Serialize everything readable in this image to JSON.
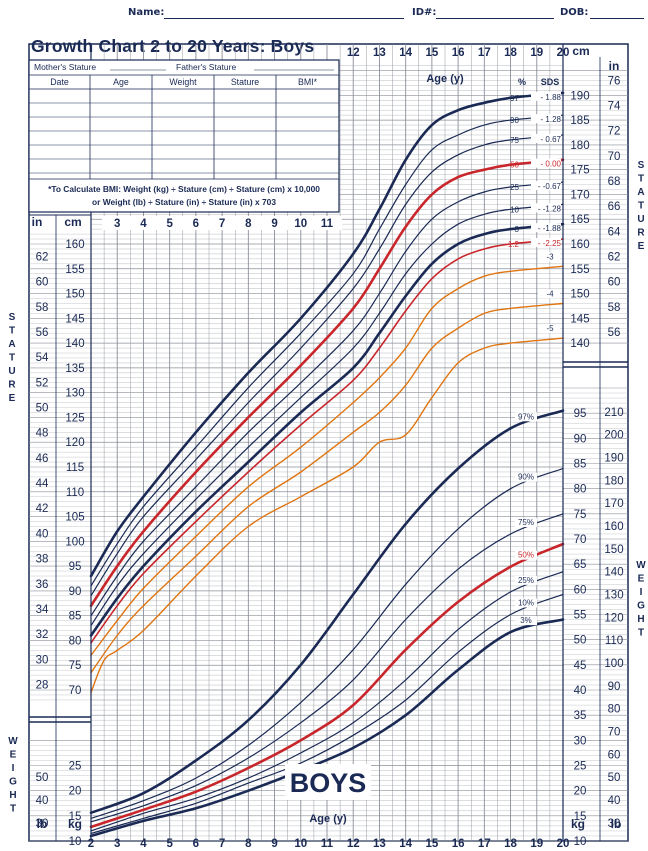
{
  "form": {
    "name_label": "Name:",
    "id_label": "ID#:",
    "dob_label": "DOB:"
  },
  "title": "Growth Chart 2 to 20 Years: Boys",
  "record_table": {
    "mother_label": "Mother's Stature",
    "father_label": "Father's Stature",
    "columns": [
      "Date",
      "Age",
      "Weight",
      "Stature",
      "BMI*"
    ]
  },
  "bmi_note": {
    "line1": "*To Calculate BMI: Weight (kg) ÷ Stature (cm) ÷ Stature (cm) x 10,000",
    "line2": "or Weight (lb) ÷ Stature (in) ÷ Stature (in) x 703"
  },
  "boys_label": "BOYS",
  "labels": {
    "age_top": "Age (y)",
    "age_bottom": "Age (y)",
    "stature": "STATURE",
    "weight": "WEIGHT",
    "in": "in",
    "cm": "cm",
    "kg": "kg",
    "lb": "lb",
    "pct": "%",
    "sds": "SDS"
  },
  "colors": {
    "navy": "#1a2a55",
    "red": "#c8262b",
    "orange": "#e07410",
    "grid": "#8a8f99"
  },
  "chart_data": [
    {
      "type": "line",
      "name": "stature",
      "title": "Growth Chart 2 to 20 Years: Boys",
      "x_label": "Age (y)",
      "y_label": "STATURE",
      "xlim": [
        2,
        20
      ],
      "ylim_cm": [
        60,
        195
      ],
      "x_ticks_bottom": [
        2,
        3,
        4,
        5,
        6,
        7,
        8,
        9,
        10,
        11,
        12,
        13,
        14,
        15,
        16,
        17,
        18,
        19,
        20
      ],
      "x_ticks_top": [
        12,
        13,
        14,
        15,
        16,
        17,
        18,
        19,
        20
      ],
      "x_ticks_mid": [
        3,
        4,
        5,
        6,
        7,
        8,
        9,
        10,
        11
      ],
      "cm_ticks_left": [
        70,
        75,
        80,
        85,
        90,
        95,
        100,
        105,
        110,
        115,
        120,
        125,
        130,
        135,
        140,
        145,
        150,
        155,
        160
      ],
      "in_ticks_left": [
        28,
        30,
        32,
        34,
        36,
        38,
        40,
        42,
        44,
        46,
        48,
        50,
        52,
        54,
        56,
        58,
        60,
        62
      ],
      "cm_ticks_right": [
        140,
        145,
        150,
        155,
        160,
        165,
        170,
        175,
        180,
        185,
        190
      ],
      "in_ticks_right": [
        56,
        58,
        60,
        62,
        64,
        66,
        68,
        70,
        72,
        74,
        76
      ],
      "series": [
        {
          "name": "97",
          "sds": "1.88",
          "x": [
            2,
            3,
            4,
            6,
            8,
            10,
            12,
            13,
            14,
            15,
            16,
            17,
            18,
            20
          ],
          "y": [
            93,
            102,
            109,
            122,
            134,
            145,
            158,
            167,
            177,
            184,
            187,
            188.5,
            189.5,
            190.5
          ]
        },
        {
          "name": "90",
          "sds": "1.28",
          "x": [
            2,
            3,
            4,
            6,
            8,
            10,
            12,
            13,
            14,
            15,
            16,
            17,
            18,
            20
          ],
          "y": [
            91,
            99.5,
            107,
            119,
            131,
            142,
            154,
            163,
            172,
            179,
            182,
            184,
            185,
            186
          ]
        },
        {
          "name": "75",
          "sds": "0.67",
          "x": [
            2,
            3,
            4,
            6,
            8,
            10,
            12,
            13,
            14,
            15,
            16,
            17,
            18,
            20
          ],
          "y": [
            89,
            97.5,
            105,
            116.5,
            128,
            139,
            151,
            159,
            168,
            174.5,
            178,
            180,
            181,
            182
          ]
        },
        {
          "name": "50",
          "sds": "0.00",
          "x": [
            2,
            3,
            4,
            6,
            8,
            10,
            12,
            13,
            14,
            15,
            16,
            17,
            18,
            20
          ],
          "y": [
            87,
            95,
            102,
            114,
            125,
            135.5,
            147,
            155,
            163.5,
            170,
            173.5,
            175,
            176,
            177
          ]
        },
        {
          "name": "25",
          "sds": "-0.67",
          "x": [
            2,
            3,
            4,
            6,
            8,
            10,
            12,
            13,
            14,
            15,
            16,
            17,
            18,
            20
          ],
          "y": [
            85,
            93,
            100,
            111,
            122,
            132,
            142.5,
            150,
            158.5,
            165,
            168.5,
            170.5,
            171.5,
            172.5
          ]
        },
        {
          "name": "10",
          "sds": "-1.28",
          "x": [
            2,
            3,
            4,
            6,
            8,
            10,
            12,
            13,
            14,
            15,
            16,
            17,
            18,
            20
          ],
          "y": [
            83,
            91,
            97.5,
            108.5,
            119,
            129,
            139,
            146,
            154,
            160,
            164,
            166,
            167,
            168
          ]
        },
        {
          "name": "3",
          "sds": "-1.88",
          "x": [
            2,
            3,
            4,
            6,
            8,
            10,
            12,
            13,
            14,
            15,
            16,
            17,
            18,
            20
          ],
          "y": [
            81,
            88.5,
            95,
            106,
            116,
            126,
            135,
            142,
            149.5,
            156,
            160,
            162,
            163,
            164
          ]
        },
        {
          "name": "1.2",
          "sds": "-2.25",
          "x": [
            2,
            3,
            4,
            6,
            8,
            10,
            12,
            13,
            14,
            15,
            16,
            17,
            18,
            20
          ],
          "y": [
            79.5,
            87,
            93.5,
            104,
            114,
            123.5,
            132.5,
            139,
            146.5,
            153,
            157,
            159,
            160,
            161
          ]
        },
        {
          "name": "-3",
          "x": [
            2,
            3,
            4,
            6,
            8,
            10,
            12,
            13,
            14,
            15,
            16,
            17,
            18,
            20
          ],
          "y": [
            77,
            84,
            90.5,
            101,
            111,
            119,
            128,
            133,
            139,
            147,
            151,
            153.5,
            154.5,
            155.5
          ]
        },
        {
          "name": "-4",
          "x": [
            2,
            3,
            4,
            6,
            8,
            10,
            12,
            13,
            14,
            15,
            16,
            17,
            18,
            20
          ],
          "y": [
            73.5,
            81,
            87,
            97,
            107,
            114,
            122,
            126,
            131.5,
            139,
            143,
            146,
            147,
            148
          ]
        },
        {
          "name": "-5",
          "x": [
            2,
            2.5,
            3,
            4,
            6,
            8,
            10,
            12,
            13,
            14,
            15,
            16,
            17,
            18,
            20
          ],
          "y": [
            69.5,
            76,
            78,
            82,
            93,
            103,
            109,
            115,
            120,
            121.5,
            129,
            136,
            139,
            140,
            141
          ]
        }
      ]
    },
    {
      "type": "line",
      "name": "weight",
      "x_label": "Age (y)",
      "y_label": "WEIGHT",
      "xlim": [
        2,
        20
      ],
      "ylim_kg": [
        10,
        100
      ],
      "kg_ticks_left": [
        10,
        15,
        20,
        25
      ],
      "lb_ticks_left": [
        30,
        40,
        50
      ],
      "kg_ticks_right": [
        10,
        15,
        20,
        25,
        30,
        35,
        40,
        45,
        50,
        55,
        60,
        65,
        70,
        75,
        80,
        85,
        90,
        95
      ],
      "lb_ticks_right": [
        30,
        40,
        50,
        60,
        70,
        80,
        90,
        100,
        110,
        120,
        130,
        140,
        150,
        160,
        170,
        180,
        190,
        200,
        210
      ],
      "series": [
        {
          "name": "97%",
          "x": [
            2,
            4,
            6,
            8,
            10,
            12,
            14,
            16,
            18,
            20
          ],
          "y": [
            15.6,
            19.5,
            26,
            34,
            45,
            59,
            73,
            84,
            92,
            95.5
          ]
        },
        {
          "name": "90%",
          "x": [
            2,
            4,
            6,
            8,
            10,
            12,
            14,
            16,
            18,
            20
          ],
          "y": [
            14.5,
            18,
            22.5,
            29,
            37.5,
            48,
            61,
            72,
            80,
            84
          ]
        },
        {
          "name": "75%",
          "x": [
            2,
            4,
            6,
            8,
            10,
            12,
            14,
            16,
            18,
            20
          ],
          "y": [
            13.8,
            17,
            21,
            26.5,
            33.5,
            42,
            54,
            64,
            71,
            75
          ]
        },
        {
          "name": "50%",
          "x": [
            2,
            4,
            6,
            8,
            10,
            12,
            14,
            16,
            18,
            20
          ],
          "y": [
            12.8,
            16.2,
            19.8,
            24.5,
            30,
            37,
            48,
            57.5,
            64.5,
            69
          ]
        },
        {
          "name": "25%",
          "x": [
            2,
            4,
            6,
            8,
            10,
            12,
            14,
            16,
            18,
            20
          ],
          "y": [
            12,
            15.5,
            18.5,
            22.5,
            27.5,
            33.5,
            42,
            52,
            59.5,
            63.5
          ]
        },
        {
          "name": "10%",
          "x": [
            2,
            4,
            6,
            8,
            10,
            12,
            14,
            16,
            18,
            20
          ],
          "y": [
            11.5,
            14.5,
            17.5,
            21.5,
            25.5,
            31,
            38,
            47.5,
            55,
            59
          ]
        },
        {
          "name": "3%",
          "x": [
            2,
            4,
            6,
            8,
            10,
            12,
            14,
            16,
            18,
            20
          ],
          "y": [
            11,
            14,
            16.5,
            20,
            24,
            28.5,
            35,
            44,
            51.5,
            54
          ]
        }
      ]
    }
  ]
}
